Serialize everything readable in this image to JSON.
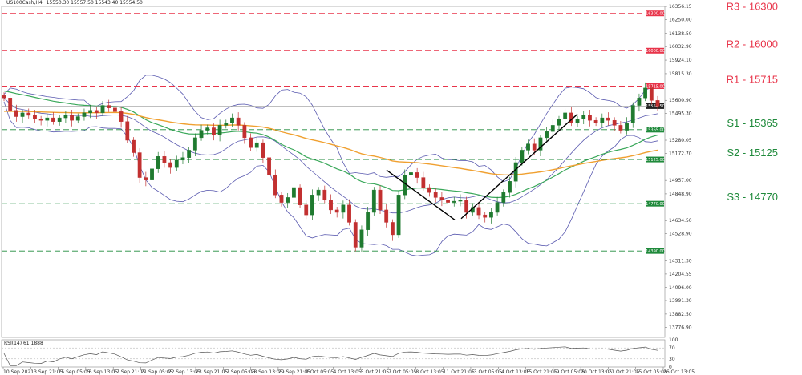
{
  "header": {
    "symbol": "US100Cash,H4",
    "ohlc": "15550.30 15557.50 15543.40 15554.50"
  },
  "rsi_header": "RSI(14) 61.1888",
  "colors": {
    "resistance": "#e8344a",
    "support": "#1f8a3b",
    "bull": "#1f7a2f",
    "bear": "#c23030",
    "bollinger": "#5b5bb0",
    "ema_green": "#3aa85a",
    "ema_orange": "#f0a030",
    "price_tag": "#222222"
  },
  "chart_data": [
    {
      "type": "candlestick",
      "title": "",
      "price_axis": {
        "range": [
          13695,
          16356.15
        ],
        "ticks": [
          "16356.15",
          "16250.00",
          "16138.50",
          "16032.90",
          "15924.10",
          "15815.30",
          "15600.90",
          "15495.30",
          "15280.05",
          "15172.70",
          "14957.00",
          "14848.90",
          "14634.50",
          "14528.90",
          "14311.30",
          "14204.55",
          "14096.00",
          "13991.30",
          "13882.50",
          "13776.90"
        ]
      },
      "time_axis": {
        "labels": [
          "10 Sep 2021",
          "13 Sep 21:05",
          "15 Sep 05:05",
          "16 Sep 13:05",
          "17 Sep 21:05",
          "21 Sep 05:05",
          "22 Sep 13:05",
          "23 Sep 21:05",
          "27 Sep 05:05",
          "28 Sep 13:05",
          "29 Sep 21:05",
          "1 Oct 05:05",
          "4 Oct 13:05",
          "5 Oct 21:05",
          "7 Oct 05:05",
          "8 Oct 13:05",
          "11 Oct 21:05",
          "13 Oct 05:05",
          "14 Oct 13:05",
          "15 Oct 21:05",
          "19 Oct 05:05",
          "20 Oct 13:05",
          "21 Oct 21:05",
          "25 Oct 05:05",
          "26 Oct 13:05"
        ]
      },
      "levels": [
        {
          "name": "R3",
          "label": "R3 - 16300",
          "value": 16300,
          "tag": "16300.00",
          "kind": "resistance"
        },
        {
          "name": "R2",
          "label": "R2 - 16000",
          "value": 16000,
          "tag": "16000.00",
          "kind": "resistance"
        },
        {
          "name": "R1",
          "label": "R1 - 15715",
          "value": 15715,
          "tag": "15715.00",
          "kind": "resistance"
        },
        {
          "name": "S1",
          "label": "S1 - 15365",
          "value": 15365,
          "tag": "15365.00",
          "kind": "support"
        },
        {
          "name": "S2",
          "label": "S2 - 15125",
          "value": 15125,
          "tag": "15125.00",
          "kind": "support"
        },
        {
          "name": "S3",
          "label": "S3 - 14770",
          "value": 14770,
          "tag": "14770.00",
          "kind": "support"
        },
        {
          "name": "S4",
          "label": "",
          "value": 14390,
          "tag": "14390.00",
          "kind": "support"
        }
      ],
      "current_price": {
        "value": 15554.5,
        "tag": "15554.50"
      },
      "closes": [
        15620,
        15520,
        15470,
        15500,
        15480,
        15450,
        15440,
        15460,
        15430,
        15460,
        15480,
        15440,
        15470,
        15500,
        15520,
        15500,
        15560,
        15540,
        15510,
        15430,
        15280,
        15180,
        14980,
        14960,
        15050,
        15150,
        15100,
        15060,
        15120,
        15140,
        15200,
        15300,
        15360,
        15380,
        15320,
        15400,
        15420,
        15460,
        15400,
        15300,
        15220,
        15260,
        15140,
        15000,
        14840,
        14780,
        14820,
        14900,
        14760,
        14680,
        14840,
        14880,
        14800,
        14720,
        14700,
        14760,
        14620,
        14420,
        14560,
        14700,
        14880,
        14720,
        14620,
        14520,
        14840,
        15000,
        15020,
        14980,
        14900,
        14860,
        14820,
        14800,
        14780,
        14790,
        14800,
        14700,
        14740,
        14680,
        14660,
        14700,
        14780,
        14860,
        14950,
        15100,
        15200,
        15250,
        15200,
        15300,
        15350,
        15400,
        15450,
        15500,
        15420,
        15450,
        15480,
        15440,
        15420,
        15460,
        15440,
        15400,
        15360,
        15420,
        15560,
        15620,
        15700,
        15600,
        15554.5
      ],
      "rsi": {
        "range": [
          0,
          100
        ],
        "ticks": [
          "100",
          "70",
          "30",
          "0"
        ],
        "last": 61.1888
      },
      "trendlines": [
        {
          "name": "downtrend",
          "from": [
            482,
            15040
          ],
          "to": [
            567,
            14640
          ]
        },
        {
          "name": "uptrend",
          "from": [
            575,
            14650
          ],
          "to": [
            720,
            15490
          ]
        }
      ]
    }
  ]
}
